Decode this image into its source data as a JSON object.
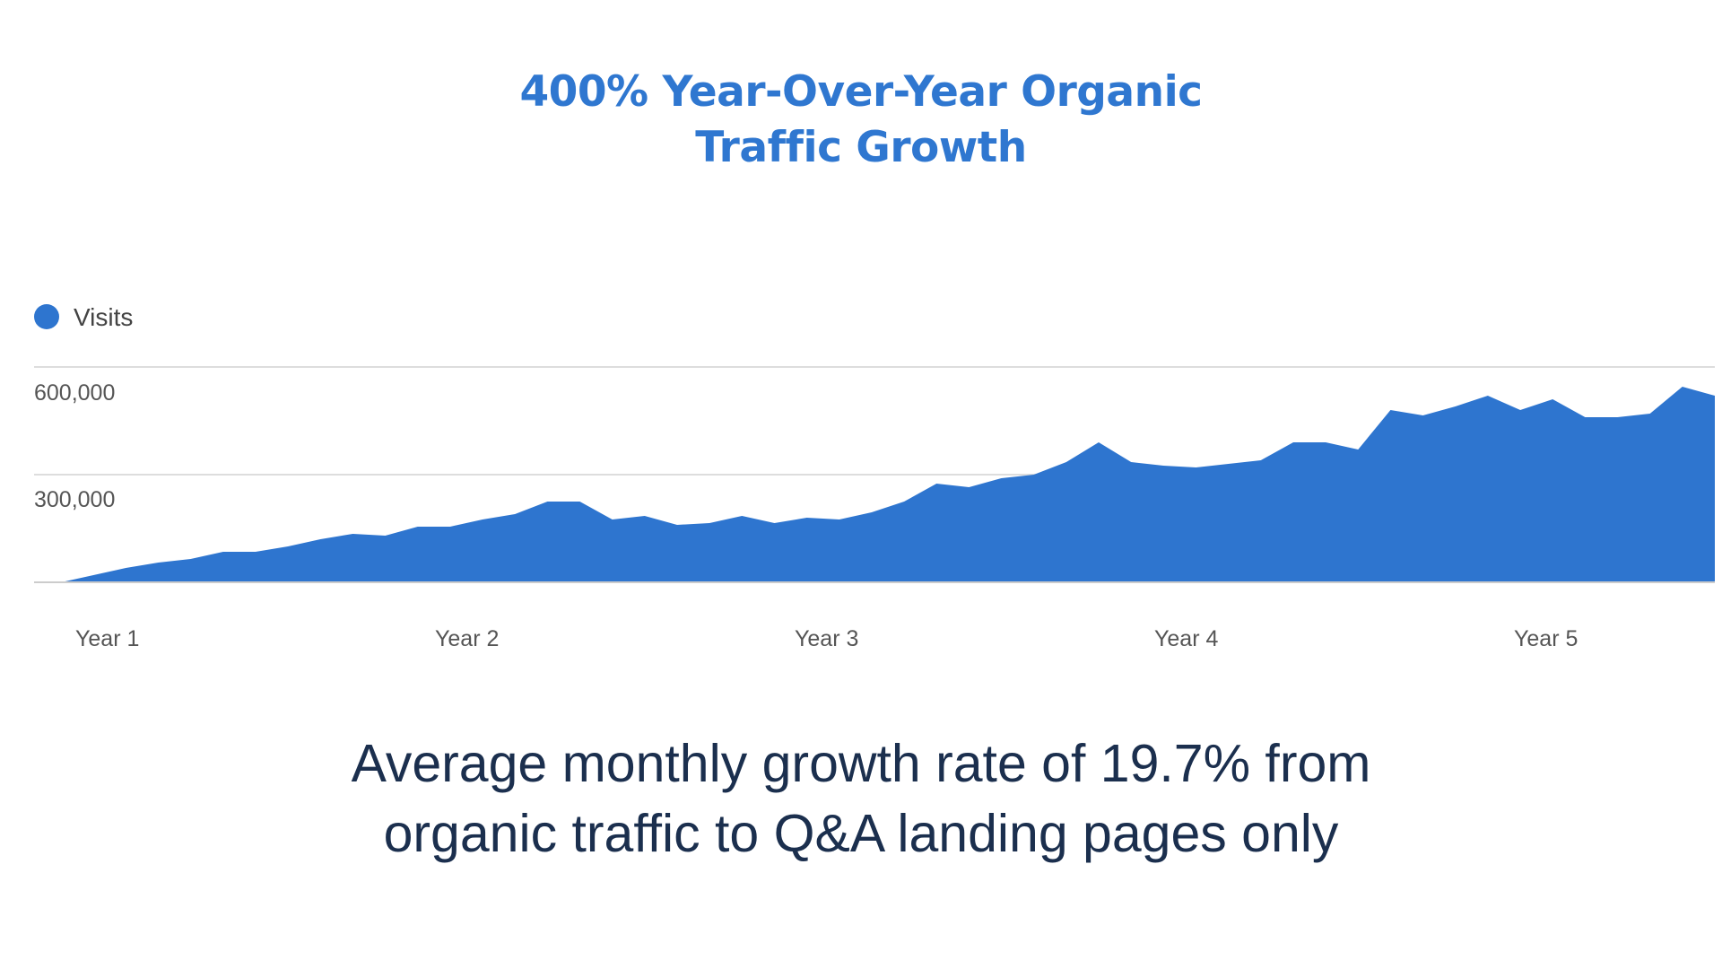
{
  "title": {
    "line1": "400% Year-Over-Year Organic",
    "line2": "Traffic Growth"
  },
  "subtitle": {
    "line1": "Average monthly growth rate of 19.7% from",
    "line2": "organic traffic to Q&A landing pages only"
  },
  "colors": {
    "title": "#2f77d0",
    "area": "#2e75cf",
    "subtitle": "#1b2f4e",
    "grid": "#dddddd"
  },
  "chart_data": {
    "type": "area",
    "legend": {
      "label": "Visits",
      "placement": "top-left"
    },
    "x_tick_labels": [
      "Year 1",
      "Year 2",
      "Year 3",
      "Year 4",
      "Year 5"
    ],
    "y_ticks": [
      300000,
      600000
    ],
    "y_tick_labels": [
      "300,000",
      "600,000"
    ],
    "ylim": [
      0,
      600000
    ],
    "grid": true,
    "series": [
      {
        "name": "Visits",
        "values": [
          0,
          20000,
          40000,
          55000,
          65000,
          85000,
          85000,
          100000,
          120000,
          135000,
          130000,
          155000,
          155000,
          175000,
          190000,
          225000,
          225000,
          175000,
          185000,
          160000,
          165000,
          185000,
          165000,
          180000,
          175000,
          195000,
          225000,
          275000,
          265000,
          290000,
          300000,
          335000,
          390000,
          335000,
          325000,
          320000,
          330000,
          340000,
          390000,
          390000,
          370000,
          480000,
          465000,
          490000,
          520000,
          480000,
          510000,
          460000,
          460000,
          470000,
          545000,
          520000
        ]
      }
    ]
  }
}
